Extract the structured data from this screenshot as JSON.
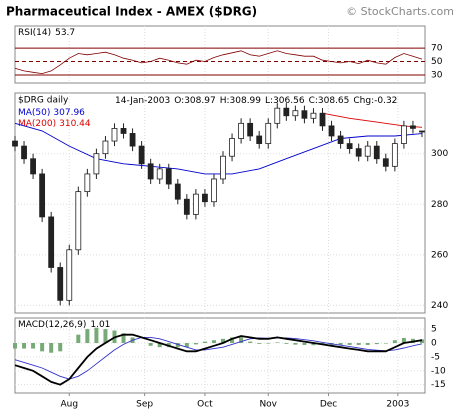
{
  "header": {
    "title": "Pharmaceutical Index - AMEX ($DRG)",
    "credit": "© StockCharts.com"
  },
  "chart_data": [
    {
      "type": "line",
      "label": "RSI(14)",
      "last_value": 53.7,
      "x": [
        0,
        3,
        6,
        9,
        12,
        15,
        18,
        21,
        24,
        27,
        30,
        33,
        36,
        39,
        42,
        45,
        48,
        51,
        54,
        57,
        60,
        63,
        66,
        69,
        72,
        75,
        78,
        81,
        84,
        87,
        90,
        93,
        96,
        99,
        102,
        105,
        108,
        111,
        114,
        117,
        120,
        123,
        126,
        129,
        132,
        135
      ],
      "series": [
        {
          "name": "RSI(14)",
          "color": "#800000",
          "values": [
            40,
            36,
            34,
            32,
            36,
            45,
            55,
            62,
            60,
            62,
            64,
            60,
            55,
            52,
            48,
            50,
            55,
            52,
            48,
            46,
            52,
            50,
            56,
            60,
            63,
            66,
            60,
            58,
            62,
            66,
            62,
            60,
            58,
            58,
            52,
            50,
            48,
            50,
            47,
            52,
            48,
            46,
            56,
            62,
            58,
            53.7
          ]
        }
      ],
      "ylim": [
        18,
        103
      ],
      "yticks": [
        30,
        50,
        70
      ]
    },
    {
      "type": "candlestick",
      "label": "$DRG daily",
      "quote": {
        "date": "14-Jan-2003",
        "fields": [
          {
            "label": "O:",
            "value": 308.97
          },
          {
            "label": "H:",
            "value": 308.99
          },
          {
            "label": "L:",
            "value": 306.56
          },
          {
            "label": "C:",
            "value": 308.65
          },
          {
            "label": "Chg:",
            "value": -0.32
          }
        ]
      },
      "color": "#222222",
      "x": [
        0,
        3,
        6,
        9,
        12,
        15,
        18,
        21,
        24,
        27,
        30,
        33,
        36,
        39,
        42,
        45,
        48,
        51,
        54,
        57,
        60,
        63,
        66,
        69,
        72,
        75,
        78,
        81,
        84,
        87,
        90,
        93,
        96,
        99,
        102,
        105,
        108,
        111,
        114,
        117,
        120,
        123,
        126,
        129,
        132,
        135
      ],
      "open": [
        305,
        303,
        298,
        292,
        275,
        255,
        242,
        262,
        285,
        292,
        300,
        305,
        310,
        308,
        303,
        296,
        290,
        294,
        288,
        282,
        276,
        284,
        281,
        290,
        299,
        306,
        312,
        307,
        304,
        312,
        318,
        315,
        317,
        314,
        316,
        311,
        307,
        304,
        302,
        299,
        303,
        298,
        295,
        304,
        311,
        308.97
      ],
      "high": [
        307,
        305,
        300,
        294,
        277,
        257,
        264,
        287,
        294,
        302,
        307,
        312,
        312,
        310,
        305,
        298,
        296,
        296,
        290,
        284,
        286,
        286,
        292,
        301,
        308,
        314,
        314,
        309,
        314,
        320,
        320,
        319,
        319,
        318,
        318,
        313,
        309,
        306,
        304,
        305,
        305,
        300,
        306,
        313,
        313,
        308.99
      ],
      "low": [
        301,
        296,
        290,
        273,
        253,
        240,
        240,
        260,
        283,
        290,
        298,
        303,
        306,
        301,
        294,
        288,
        288,
        286,
        280,
        274,
        274,
        279,
        279,
        288,
        297,
        304,
        305,
        302,
        302,
        310,
        313,
        313,
        312,
        312,
        309,
        305,
        302,
        300,
        297,
        297,
        296,
        293,
        293,
        302,
        308,
        306.56
      ],
      "close": [
        303,
        298,
        292,
        275,
        255,
        242,
        262,
        285,
        292,
        300,
        305,
        310,
        308,
        303,
        296,
        290,
        294,
        288,
        282,
        276,
        284,
        281,
        290,
        299,
        306,
        312,
        307,
        304,
        312,
        318,
        315,
        317,
        314,
        316,
        311,
        307,
        304,
        302,
        299,
        303,
        298,
        295,
        304,
        311,
        310,
        308.65
      ],
      "overlays": [
        {
          "name": "MA(50)",
          "value": 307.96,
          "color": "#0000cc",
          "x": [
            0,
            9,
            18,
            27,
            36,
            45,
            54,
            63,
            72,
            81,
            90,
            99,
            108,
            117,
            126,
            135
          ],
          "values": [
            312,
            309,
            303,
            298,
            296,
            295,
            294,
            292,
            292,
            294,
            298,
            302,
            306,
            307,
            307,
            307.96
          ]
        },
        {
          "name": "MA(200)",
          "value": 310.44,
          "color": "#dd0000",
          "x": [
            102,
            111,
            120,
            129,
            135
          ],
          "values": [
            316,
            314,
            312.5,
            311,
            310.44
          ]
        }
      ],
      "ylim": [
        237,
        324
      ],
      "yticks": [
        240,
        260,
        280,
        300
      ]
    },
    {
      "type": "macd",
      "label": "MACD(12,26,9)",
      "last_value": 1.01,
      "x": [
        0,
        3,
        6,
        9,
        12,
        15,
        18,
        21,
        24,
        27,
        30,
        33,
        36,
        39,
        42,
        45,
        48,
        51,
        54,
        57,
        60,
        63,
        66,
        69,
        72,
        75,
        78,
        81,
        84,
        87,
        90,
        93,
        96,
        99,
        102,
        105,
        108,
        111,
        114,
        117,
        120,
        123,
        126,
        129,
        132,
        135
      ],
      "series": [
        {
          "name": "MACD",
          "color": "#000000",
          "values": [
            -8,
            -9,
            -10,
            -12,
            -14,
            -15,
            -13,
            -9,
            -5,
            -2,
            0,
            2,
            3,
            3,
            2,
            1,
            0,
            -1,
            -2,
            -3,
            -3,
            -2,
            -1,
            0,
            1.5,
            2.5,
            2,
            1.5,
            1.5,
            2,
            1.5,
            1,
            0.5,
            0,
            -0.5,
            -1,
            -1.5,
            -2,
            -2.5,
            -3,
            -3,
            -3,
            -1.5,
            0,
            0.5,
            1.01
          ]
        },
        {
          "name": "Signal",
          "color": "#3333cc",
          "values": [
            -6,
            -7,
            -8,
            -9,
            -10.5,
            -12,
            -13,
            -12,
            -10,
            -7.5,
            -5,
            -2.5,
            -0.5,
            1,
            2,
            2,
            1.5,
            0.5,
            -0.5,
            -1.5,
            -2.5,
            -2.5,
            -2,
            -1.5,
            -0.5,
            0.5,
            1.5,
            1.8,
            1.7,
            1.8,
            1.8,
            1.6,
            1.2,
            0.8,
            0.2,
            -0.3,
            -0.8,
            -1.3,
            -1.8,
            -2.3,
            -2.6,
            -2.8,
            -2.5,
            -1.8,
            -1,
            -0.3
          ]
        },
        {
          "name": "Histogram",
          "color": "#77aa77",
          "values": [
            -2,
            -2,
            -2,
            -3,
            -3.5,
            -3,
            0,
            3,
            5,
            5.5,
            5,
            4.5,
            3.5,
            2,
            0,
            -1,
            -1.5,
            -1.5,
            -1.5,
            -1.5,
            -0.5,
            0.5,
            1,
            1.5,
            2,
            2,
            0.5,
            -0.3,
            -0.2,
            0.2,
            -0.3,
            -0.6,
            -0.7,
            -0.8,
            -0.7,
            -0.7,
            -0.7,
            -0.7,
            -0.7,
            -0.7,
            -0.4,
            -0.2,
            1,
            1.8,
            1.5,
            1.31
          ]
        }
      ],
      "ylim": [
        -18,
        9
      ],
      "yticks": [
        5,
        0,
        -5,
        -10,
        -15
      ],
      "xlim": [
        0,
        136
      ],
      "xticks": [
        {
          "value": 18,
          "label": "Aug"
        },
        {
          "value": 43,
          "label": "Sep"
        },
        {
          "value": 63,
          "label": "Oct"
        },
        {
          "value": 84,
          "label": "Nov"
        },
        {
          "value": 104,
          "label": "Dec"
        },
        {
          "value": 127,
          "label": "2003"
        }
      ]
    }
  ]
}
